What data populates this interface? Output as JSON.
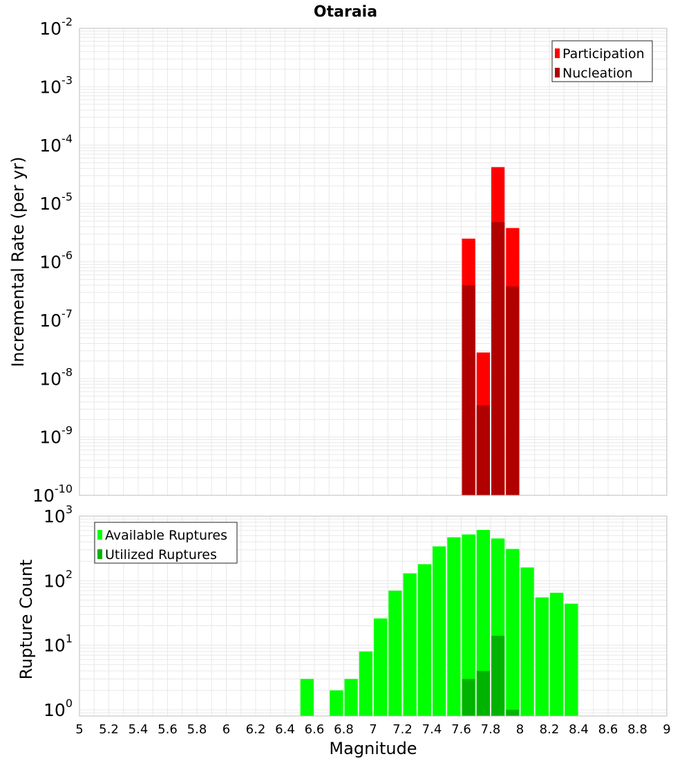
{
  "title": "Otaraia",
  "colors": {
    "participation": "#ff0000",
    "nucleation": "#b10000",
    "available": "#00ff00",
    "utilized": "#00b300",
    "grid": "#e8e8e8",
    "frame": "#bbbbbb"
  },
  "chart_data": [
    {
      "type": "bar",
      "panel": "top",
      "ylabel": "Incremental Rate (per yr)",
      "yscale": "log",
      "ylim": [
        1e-10,
        0.01
      ],
      "xlim": [
        5,
        9
      ],
      "bin_width": 0.1,
      "ytick_exponents": [
        -2,
        -3,
        -4,
        -5,
        -6,
        -7,
        -8,
        -9,
        -10
      ],
      "legend": {
        "position": "top-right",
        "entries": [
          "Participation",
          "Nucleation"
        ]
      },
      "series": [
        {
          "name": "Participation",
          "color": "#ff0000",
          "x": [
            7.65,
            7.75,
            7.85,
            7.95
          ],
          "values": [
            2.5e-06,
            2.8e-08,
            4.2e-05,
            3.8e-06
          ]
        },
        {
          "name": "Nucleation",
          "color": "#b10000",
          "x": [
            7.65,
            7.75,
            7.85,
            7.95
          ],
          "values": [
            4e-07,
            3.5e-09,
            4.8e-06,
            3.8e-07
          ]
        }
      ]
    },
    {
      "type": "bar",
      "panel": "bottom",
      "xlabel": "Magnitude",
      "ylabel": "Rupture Count",
      "yscale": "log",
      "ylim": [
        0.8,
        1000
      ],
      "xlim": [
        5,
        9
      ],
      "bin_width": 0.1,
      "ytick_exponents": [
        3,
        2,
        1,
        0
      ],
      "xticks": [
        "5",
        "5.2",
        "5.4",
        "5.6",
        "5.8",
        "6",
        "6.2",
        "6.4",
        "6.6",
        "6.8",
        "7",
        "7.2",
        "7.4",
        "7.6",
        "7.8",
        "8",
        "8.2",
        "8.4",
        "8.6",
        "8.8",
        "9"
      ],
      "legend": {
        "position": "top-left",
        "entries": [
          "Available Ruptures",
          "Utilized Ruptures"
        ]
      },
      "series": [
        {
          "name": "Available Ruptures",
          "color": "#00ff00",
          "x": [
            6.55,
            6.75,
            6.85,
            6.95,
            7.05,
            7.15,
            7.25,
            7.35,
            7.45,
            7.55,
            7.65,
            7.75,
            7.85,
            7.95,
            8.05,
            8.15,
            8.25,
            8.35
          ],
          "values": [
            3,
            2,
            3,
            8,
            26,
            70,
            130,
            180,
            340,
            470,
            520,
            610,
            450,
            310,
            160,
            55,
            65,
            44
          ]
        },
        {
          "name": "Utilized Ruptures",
          "color": "#00b300",
          "x": [
            7.65,
            7.75,
            7.85,
            7.95
          ],
          "values": [
            3,
            4,
            14,
            1
          ]
        }
      ]
    }
  ]
}
